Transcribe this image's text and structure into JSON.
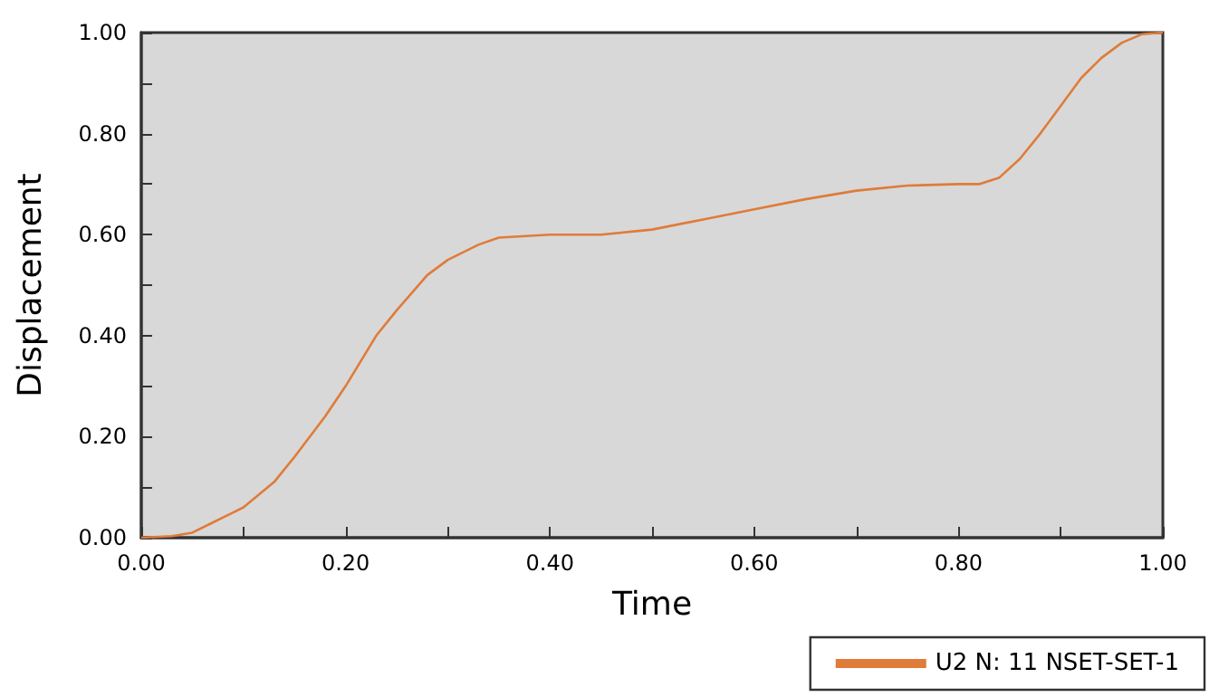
{
  "chart_data": {
    "type": "line",
    "xlabel": "Time",
    "ylabel": "Displacement",
    "x": [
      0,
      0.03,
      0.05,
      0.07,
      0.1,
      0.13,
      0.15,
      0.18,
      0.2,
      0.23,
      0.25,
      0.28,
      0.3,
      0.33,
      0.35,
      0.4,
      0.45,
      0.5,
      0.55,
      0.6,
      0.65,
      0.7,
      0.75,
      0.8,
      0.82,
      0.84,
      0.86,
      0.88,
      0.9,
      0.92,
      0.94,
      0.96,
      0.98,
      1.0
    ],
    "series": [
      {
        "name": "U2 N: 11 NSET-SET-1",
        "color": "#e07b39",
        "values": [
          0,
          0.003,
          0.01,
          0.03,
          0.06,
          0.11,
          0.16,
          0.24,
          0.3,
          0.4,
          0.45,
          0.52,
          0.55,
          0.58,
          0.594,
          0.6,
          0.6,
          0.61,
          0.63,
          0.65,
          0.67,
          0.687,
          0.697,
          0.7,
          0.7,
          0.713,
          0.75,
          0.8,
          0.855,
          0.91,
          0.95,
          0.98,
          0.997,
          1.0
        ]
      }
    ],
    "xlim": [
      0,
      1
    ],
    "ylim": [
      0,
      1
    ],
    "xticks": [
      {
        "value": 0,
        "label": "0.00"
      },
      {
        "value": 0.1,
        "label": null
      },
      {
        "value": 0.2,
        "label": "0.20"
      },
      {
        "value": 0.3,
        "label": null
      },
      {
        "value": 0.4,
        "label": "0.40"
      },
      {
        "value": 0.5,
        "label": null
      },
      {
        "value": 0.6,
        "label": "0.60"
      },
      {
        "value": 0.7,
        "label": null
      },
      {
        "value": 0.8,
        "label": "0.80"
      },
      {
        "value": 0.9,
        "label": null
      },
      {
        "value": 1,
        "label": "1.00"
      }
    ],
    "yticks": [
      {
        "value": 0,
        "label": "0.00"
      },
      {
        "value": 0.1,
        "label": null
      },
      {
        "value": 0.2,
        "label": "0.20"
      },
      {
        "value": 0.3,
        "label": null
      },
      {
        "value": 0.4,
        "label": "0.40"
      },
      {
        "value": 0.5,
        "label": null
      },
      {
        "value": 0.6,
        "label": "0.60"
      },
      {
        "value": 0.7,
        "label": null
      },
      {
        "value": 0.8,
        "label": "0.80"
      },
      {
        "value": 0.9,
        "label": null
      },
      {
        "value": 1,
        "label": "1.00"
      }
    ],
    "grid": false,
    "legend": "bottom right",
    "marker": "none",
    "line_style": "solid"
  }
}
